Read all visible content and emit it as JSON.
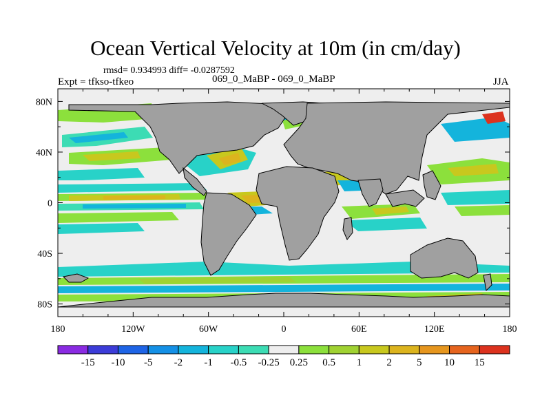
{
  "title": "Ocean Vertical Velocity at 10m (in cm/day)",
  "stats": "rmsd= 0.934993 diff= -0.0287592",
  "experiment": "Expt = tfkso-tfkeo",
  "case": "069_0_MaBP - 069_0_MaBP",
  "season": "JJA",
  "chart_data": {
    "type": "heatmap",
    "title": "Ocean Vertical Velocity at 10m (in cm/day)",
    "x_ticks": [
      "180",
      "120W",
      "60W",
      "0",
      "60E",
      "120E",
      "180"
    ],
    "x_tick_values": [
      -180,
      -120,
      -60,
      0,
      60,
      120,
      180
    ],
    "y_ticks": [
      "80N",
      "40N",
      "0",
      "40S",
      "80S"
    ],
    "y_tick_values": [
      80,
      40,
      0,
      -40,
      -80
    ],
    "xlim": [
      -180,
      180
    ],
    "ylim": [
      -90,
      90
    ],
    "colorbar": {
      "labels": [
        "-15",
        "-10",
        "-5",
        "-2",
        "-1",
        "-0.5",
        "-0.25",
        "0.25",
        "0.5",
        "1",
        "2",
        "5",
        "10",
        "15"
      ],
      "colors": [
        "#8a2be2",
        "#3c3cd8",
        "#1e64e6",
        "#1490e6",
        "#14b4dc",
        "#28d2c8",
        "#3cdcb4",
        "#eeeeee",
        "#8ce03c",
        "#a0d232",
        "#c8c81e",
        "#dcb41e",
        "#e6961e",
        "#e6641e",
        "#dc321e"
      ]
    },
    "land_color": "#a0a0a0",
    "no_data_color": "#eeeeee"
  }
}
